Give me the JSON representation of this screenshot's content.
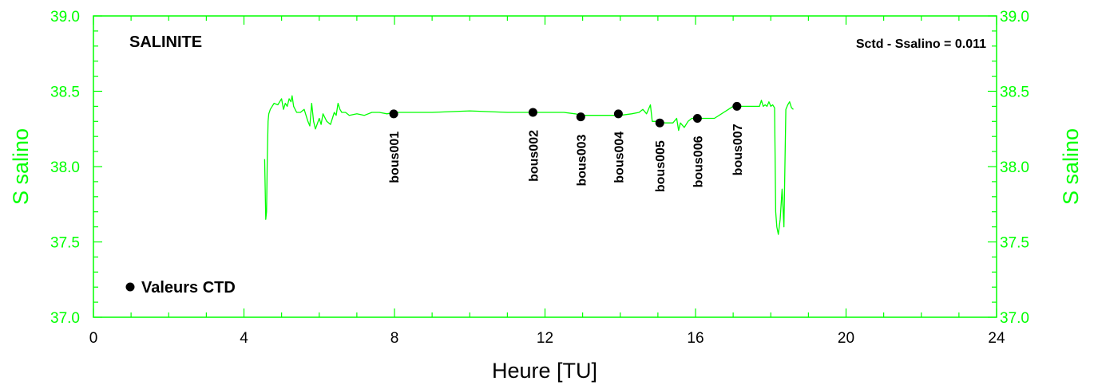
{
  "chart_data": {
    "type": "line",
    "title": "SALINITE",
    "annotation": "Sctd - Ssalino = 0.011",
    "xlabel": "Heure [TU]",
    "ylabel_left": "S salino",
    "ylabel_right": "S salino",
    "xlim": [
      0,
      24
    ],
    "ylim": [
      37.0,
      39.0
    ],
    "x_ticks": [
      0,
      4,
      8,
      12,
      16,
      20,
      24
    ],
    "x_tick_labels": [
      "0",
      "4",
      "8",
      "12",
      "16",
      "20",
      "24"
    ],
    "y_ticks": [
      37.0,
      37.5,
      38.0,
      38.5,
      39.0
    ],
    "y_tick_labels": [
      "37.0",
      "37.5",
      "38.0",
      "38.5",
      "39.0"
    ],
    "grid": false,
    "legend": {
      "position": "bottom-left",
      "label": "Valeurs CTD"
    },
    "colors": {
      "series": "#00ff00",
      "axes": "#00ff00",
      "markers": "#000000"
    },
    "series": [
      {
        "x": [
          4.55,
          4.58,
          4.6,
          4.62,
          4.64,
          4.66,
          4.7,
          4.75,
          4.8,
          4.9,
          5.0,
          5.05,
          5.1,
          5.15,
          5.2,
          5.25,
          5.28,
          5.32,
          5.4,
          5.5,
          5.6,
          5.7,
          5.75,
          5.8,
          5.85,
          5.9,
          6.0,
          6.05,
          6.1,
          6.2,
          6.3,
          6.4,
          6.45,
          6.5,
          6.55,
          6.6,
          6.7,
          6.8,
          7.0,
          7.2,
          7.4,
          7.6,
          7.8,
          8.0,
          9.0,
          10.0,
          11.0,
          11.5,
          12.0,
          12.5,
          12.8,
          13.0,
          13.5,
          14.0,
          14.3,
          14.5,
          14.6,
          14.7,
          14.8,
          14.85,
          15.0,
          15.2,
          15.4,
          15.5,
          15.55,
          15.6,
          15.7,
          15.8,
          15.9,
          16.0,
          16.5,
          17.0,
          17.5,
          17.7,
          17.75,
          17.8,
          17.85,
          17.9,
          17.95,
          18.0,
          18.05,
          18.1,
          18.13,
          18.16,
          18.2,
          18.25,
          18.3,
          18.35,
          18.4,
          18.45,
          18.5,
          18.55,
          18.6
        ],
        "y": [
          38.05,
          37.65,
          37.7,
          38.05,
          38.3,
          38.35,
          38.38,
          38.4,
          38.42,
          38.41,
          38.45,
          38.38,
          38.42,
          38.4,
          38.45,
          38.43,
          38.47,
          38.4,
          38.36,
          38.36,
          38.38,
          38.3,
          38.27,
          38.42,
          38.3,
          38.25,
          38.32,
          38.28,
          38.35,
          38.3,
          38.28,
          38.36,
          38.34,
          38.42,
          38.38,
          38.36,
          38.36,
          38.34,
          38.35,
          38.34,
          38.36,
          38.36,
          38.35,
          38.36,
          38.36,
          38.37,
          38.36,
          38.36,
          38.36,
          38.36,
          38.35,
          38.34,
          38.34,
          38.34,
          38.35,
          38.36,
          38.38,
          38.35,
          38.41,
          38.3,
          38.3,
          38.29,
          38.29,
          38.32,
          38.24,
          38.29,
          38.26,
          38.3,
          38.32,
          38.32,
          38.32,
          38.4,
          38.4,
          38.4,
          38.44,
          38.4,
          38.41,
          38.4,
          38.43,
          38.4,
          38.41,
          38.39,
          37.7,
          37.6,
          37.55,
          37.65,
          37.85,
          37.6,
          38.38,
          38.41,
          38.43,
          38.39,
          38.38
        ]
      }
    ],
    "markers": [
      {
        "label": "bous001",
        "x": 7.98,
        "y": 38.35
      },
      {
        "label": "bous002",
        "x": 11.68,
        "y": 38.36
      },
      {
        "label": "bous003",
        "x": 12.95,
        "y": 38.33
      },
      {
        "label": "bous004",
        "x": 13.95,
        "y": 38.35
      },
      {
        "label": "bous005",
        "x": 15.05,
        "y": 38.29
      },
      {
        "label": "bous006",
        "x": 16.05,
        "y": 38.32
      },
      {
        "label": "bous007",
        "x": 17.1,
        "y": 38.4
      }
    ]
  }
}
